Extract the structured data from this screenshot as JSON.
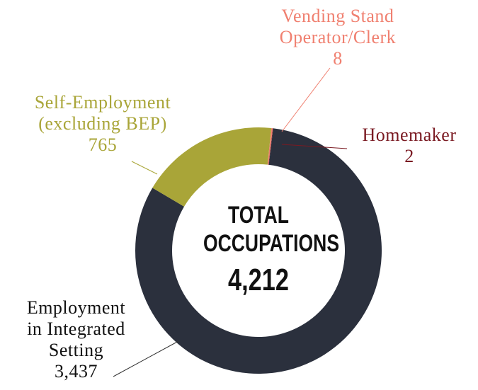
{
  "chart_data": {
    "type": "donut",
    "categories": [
      "Vending Stand Operator/Clerk",
      "Homemaker",
      "Employment in Integrated Setting",
      "Self-Employment (excluding BEP)"
    ],
    "values": [
      8,
      2,
      3437,
      765
    ],
    "value_labels": [
      "8",
      "2",
      "3,437",
      "765"
    ],
    "colors": [
      "#f08070",
      "#7a1a22",
      "#2b303d",
      "#a9a538"
    ],
    "center_label": "TOTAL OCCUPATIONS",
    "total": 4212,
    "total_label": "4,212"
  }
}
